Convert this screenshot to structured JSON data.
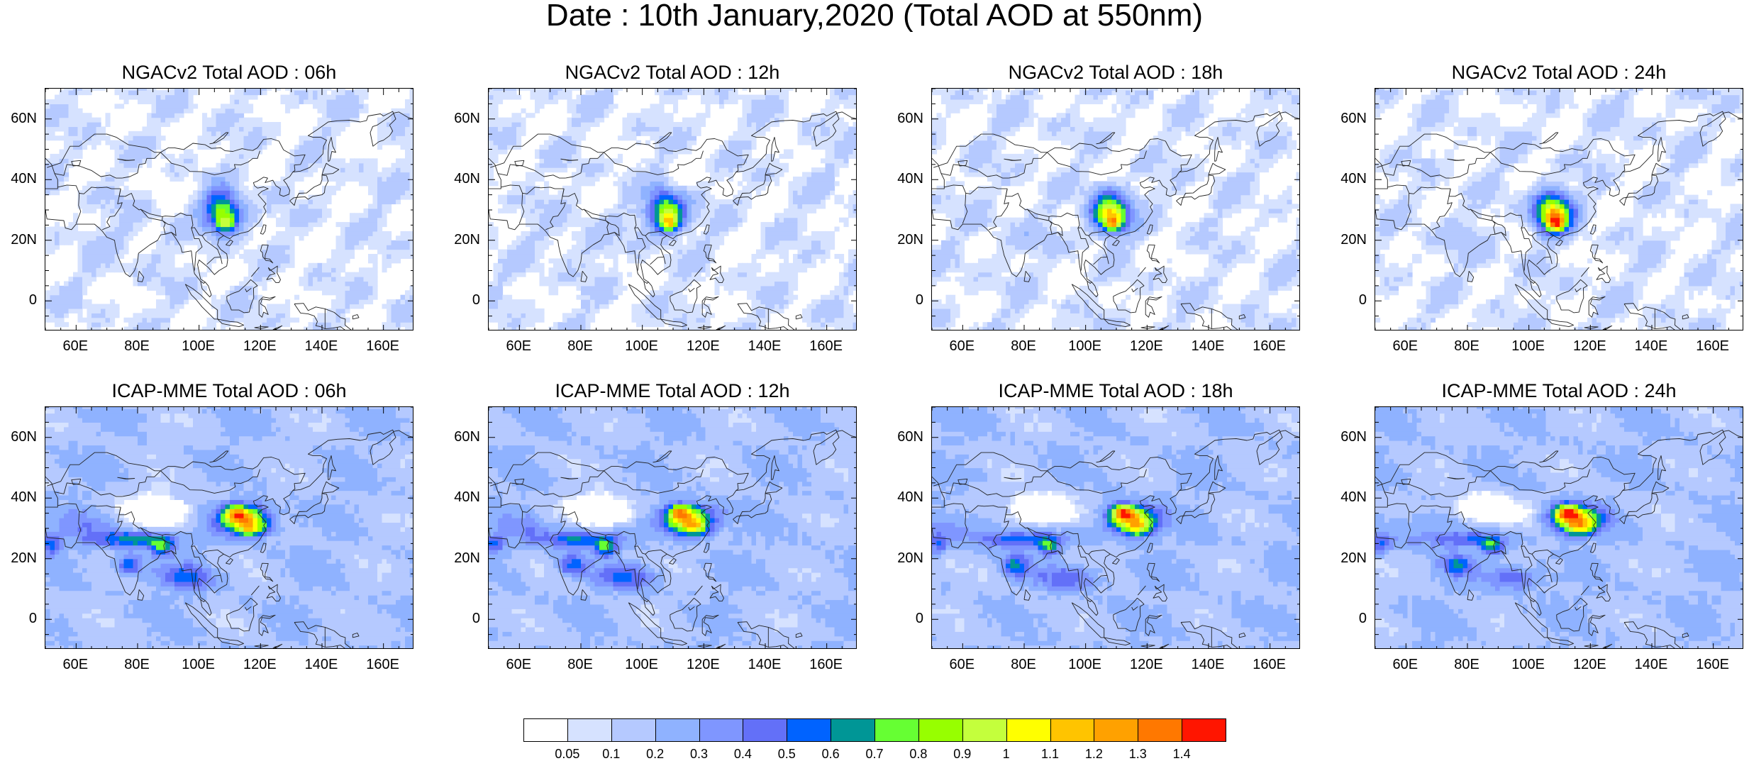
{
  "main_title": "Date : 10th January,2020 (Total AOD at 550nm)",
  "panels": [
    {
      "title": "NGACv2 Total AOD : 06h",
      "model": "ngac",
      "hour": 6
    },
    {
      "title": "NGACv2 Total AOD : 12h",
      "model": "ngac",
      "hour": 12
    },
    {
      "title": "NGACv2 Total AOD : 18h",
      "model": "ngac",
      "hour": 18
    },
    {
      "title": "NGACv2 Total AOD : 24h",
      "model": "ngac",
      "hour": 24
    },
    {
      "title": "ICAP-MME Total AOD : 06h",
      "model": "icap",
      "hour": 6
    },
    {
      "title": "ICAP-MME Total AOD : 12h",
      "model": "icap",
      "hour": 12
    },
    {
      "title": "ICAP-MME Total AOD : 18h",
      "model": "icap",
      "hour": 18
    },
    {
      "title": "ICAP-MME Total AOD : 24h",
      "model": "icap",
      "hour": 24
    }
  ],
  "map_extent": {
    "lon_min": 50,
    "lon_max": 170,
    "lat_min": -10,
    "lat_max": 70
  },
  "lat_ticks": [
    {
      "value": 60,
      "label": "60N"
    },
    {
      "value": 40,
      "label": "40N"
    },
    {
      "value": 20,
      "label": "20N"
    },
    {
      "value": 0,
      "label": "0"
    }
  ],
  "lon_ticks": [
    {
      "value": 60,
      "label": "60E"
    },
    {
      "value": 80,
      "label": "80E"
    },
    {
      "value": 100,
      "label": "100E"
    },
    {
      "value": 120,
      "label": "120E"
    },
    {
      "value": 140,
      "label": "140E"
    },
    {
      "value": 160,
      "label": "160E"
    }
  ],
  "colorbar": {
    "colors": [
      "#ffffff",
      "#d6e2ff",
      "#b5c9ff",
      "#8fb2ff",
      "#7f96ff",
      "#6370f8",
      "#0063ff",
      "#009696",
      "#66ff33",
      "#97ff00",
      "#c4ff3c",
      "#ffff00",
      "#ffc400",
      "#ffa100",
      "#ff7800",
      "#ff1500"
    ],
    "labels": [
      "0.05",
      "0.1",
      "0.2",
      "0.3",
      "0.4",
      "0.5",
      "0.6",
      "0.7",
      "0.8",
      "0.9",
      "1",
      "1.1",
      "1.2",
      "1.3",
      "1.4"
    ]
  }
}
